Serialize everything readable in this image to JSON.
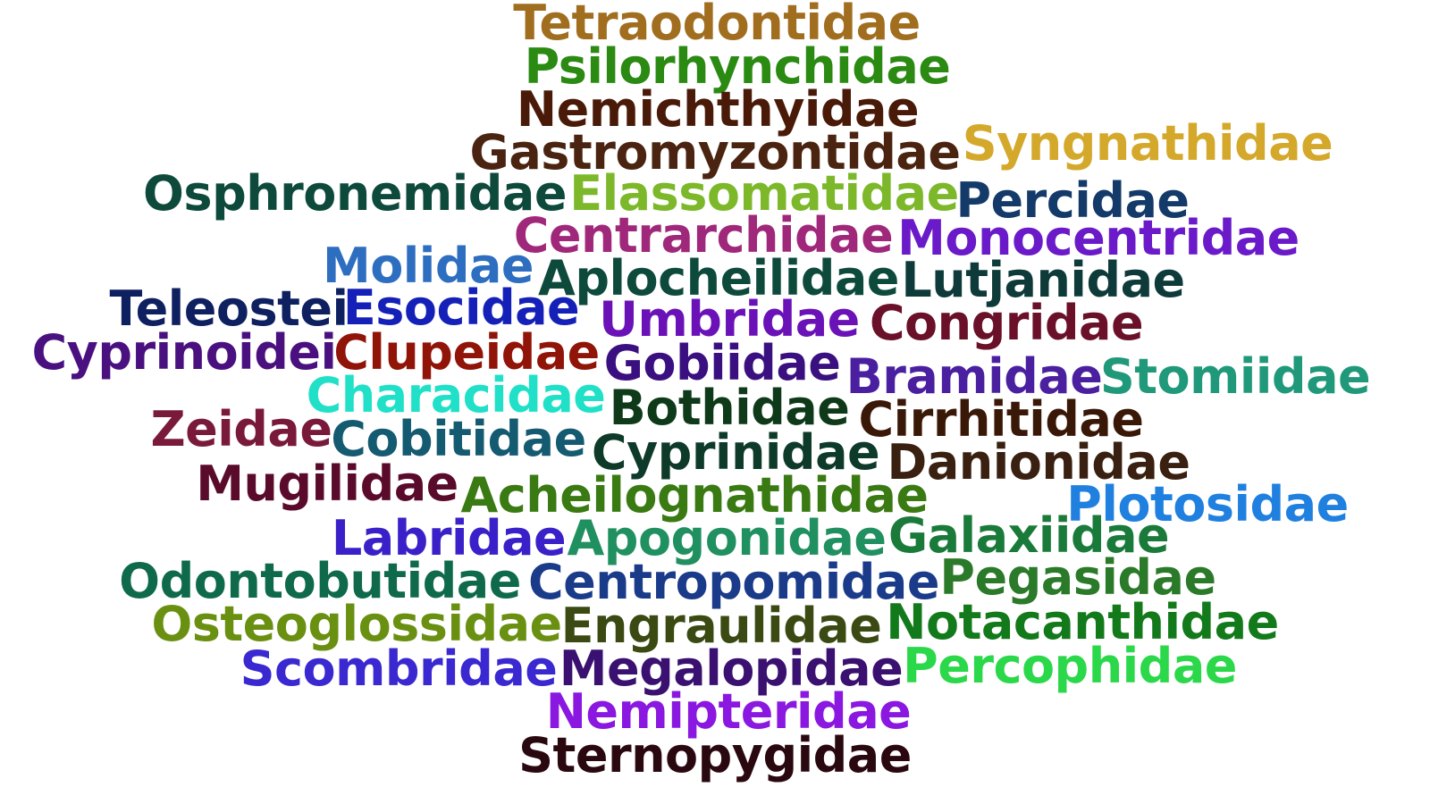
{
  "words": [
    {
      "text": "Tetraodontidae",
      "color": "#A06E1E"
    },
    {
      "text": "Psilorhynchidae",
      "color": "#2A8A12"
    },
    {
      "text": "Nemichthyidae",
      "color": "#4A1A08"
    },
    {
      "text": "Gastromyzontidae",
      "color": "#4A2410"
    },
    {
      "text": "Syngnathidae",
      "color": "#D4A82A"
    },
    {
      "text": "Osphronemidae",
      "color": "#0E4A3C"
    },
    {
      "text": "Elassomatidae",
      "color": "#7CB82A"
    },
    {
      "text": "Percidae",
      "color": "#143A6A"
    },
    {
      "text": "Centrarchidae",
      "color": "#A0287A"
    },
    {
      "text": "Monocentridae",
      "color": "#6A1AC8"
    },
    {
      "text": "Molidae",
      "color": "#2E6EC0"
    },
    {
      "text": "Aplocheilidae",
      "color": "#0E4A3C"
    },
    {
      "text": "Lutjanidae",
      "color": "#0E3A3A"
    },
    {
      "text": "Teleostei",
      "color": "#0E2060"
    },
    {
      "text": "Esocidae",
      "color": "#1420B8"
    },
    {
      "text": "Umbridae",
      "color": "#6A12B8"
    },
    {
      "text": "Congridae",
      "color": "#6A1028"
    },
    {
      "text": "Cyprinoidei",
      "color": "#4A1080"
    },
    {
      "text": "Clupeidae",
      "color": "#901408"
    },
    {
      "text": "Gobiidae",
      "color": "#3A1080"
    },
    {
      "text": "Bramidae",
      "color": "#4A20A0"
    },
    {
      "text": "Stomiidae",
      "color": "#20987A"
    },
    {
      "text": "Characidae",
      "color": "#20E0C8"
    },
    {
      "text": "Bothidae",
      "color": "#0E3A1A"
    },
    {
      "text": "Cirrhitidae",
      "color": "#3A1808"
    },
    {
      "text": "Zeidae",
      "color": "#7A1A3A"
    },
    {
      "text": "Cobitidae",
      "color": "#145A70"
    },
    {
      "text": "Cyprinidae",
      "color": "#0E3A2A"
    },
    {
      "text": "Danionidae",
      "color": "#3A2010"
    },
    {
      "text": "Mugilidae",
      "color": "#5A0A2A"
    },
    {
      "text": "Acheilognathidae",
      "color": "#3A7A12"
    },
    {
      "text": "Plotosidae",
      "color": "#2080E0"
    },
    {
      "text": "Labridae",
      "color": "#3A20C8"
    },
    {
      "text": "Apogonidae",
      "color": "#209060"
    },
    {
      "text": "Galaxiidae",
      "color": "#1A7A3A"
    },
    {
      "text": "Odontobutidae",
      "color": "#0E6A4A"
    },
    {
      "text": "Centropomidae",
      "color": "#1A3A8A"
    },
    {
      "text": "Pegasidae",
      "color": "#2A7A2A"
    },
    {
      "text": "Osteoglossidae",
      "color": "#6A9012"
    },
    {
      "text": "Engraulidae",
      "color": "#3A4A12"
    },
    {
      "text": "Notacanthidae",
      "color": "#127A1A"
    },
    {
      "text": "Scombridae",
      "color": "#3A28D0"
    },
    {
      "text": "Megalopidae",
      "color": "#3A1070"
    },
    {
      "text": "Percophidae",
      "color": "#2AD84A"
    },
    {
      "text": "Nemipteridae",
      "color": "#8A18E0"
    },
    {
      "text": "Sternopygidae",
      "color": "#2A0810"
    }
  ]
}
